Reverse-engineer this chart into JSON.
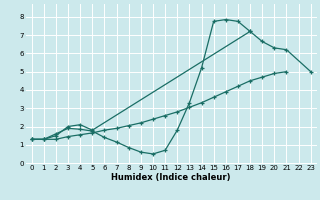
{
  "xlabel": "Humidex (Indice chaleur)",
  "bg_color": "#cce9ec",
  "grid_color": "#ffffff",
  "line_color": "#1a6e65",
  "xlim": [
    -0.5,
    23.5
  ],
  "ylim": [
    -0.05,
    8.7
  ],
  "xticks": [
    0,
    1,
    2,
    3,
    4,
    5,
    6,
    7,
    8,
    9,
    10,
    11,
    12,
    13,
    14,
    15,
    16,
    17,
    18,
    19,
    20,
    21,
    22,
    23
  ],
  "yticks": [
    0,
    1,
    2,
    3,
    4,
    5,
    6,
    7,
    8
  ],
  "line1_x": [
    0,
    1,
    2,
    3,
    4,
    5,
    6,
    7,
    8,
    9,
    10,
    11,
    12,
    13,
    14,
    15,
    16,
    17,
    18
  ],
  "line1_y": [
    1.3,
    1.3,
    1.6,
    1.9,
    1.85,
    1.75,
    1.4,
    1.15,
    0.85,
    0.6,
    0.5,
    0.7,
    1.8,
    3.3,
    5.2,
    7.75,
    7.85,
    7.75,
    7.2
  ],
  "line2_x": [
    0,
    1,
    2,
    3,
    4,
    5,
    18,
    19,
    20,
    21,
    23
  ],
  "line2_y": [
    1.3,
    1.3,
    1.5,
    2.0,
    2.1,
    1.8,
    7.2,
    6.65,
    6.3,
    6.2,
    5.0
  ],
  "line3_x": [
    0,
    1,
    2,
    3,
    4,
    5,
    6,
    7,
    8,
    9,
    10,
    11,
    12,
    13,
    14,
    15,
    16,
    17,
    18,
    19,
    20,
    21
  ],
  "line3_y": [
    1.3,
    1.3,
    1.3,
    1.45,
    1.55,
    1.65,
    1.8,
    1.9,
    2.05,
    2.2,
    2.4,
    2.6,
    2.8,
    3.05,
    3.3,
    3.6,
    3.9,
    4.2,
    4.5,
    4.7,
    4.9,
    5.0
  ]
}
